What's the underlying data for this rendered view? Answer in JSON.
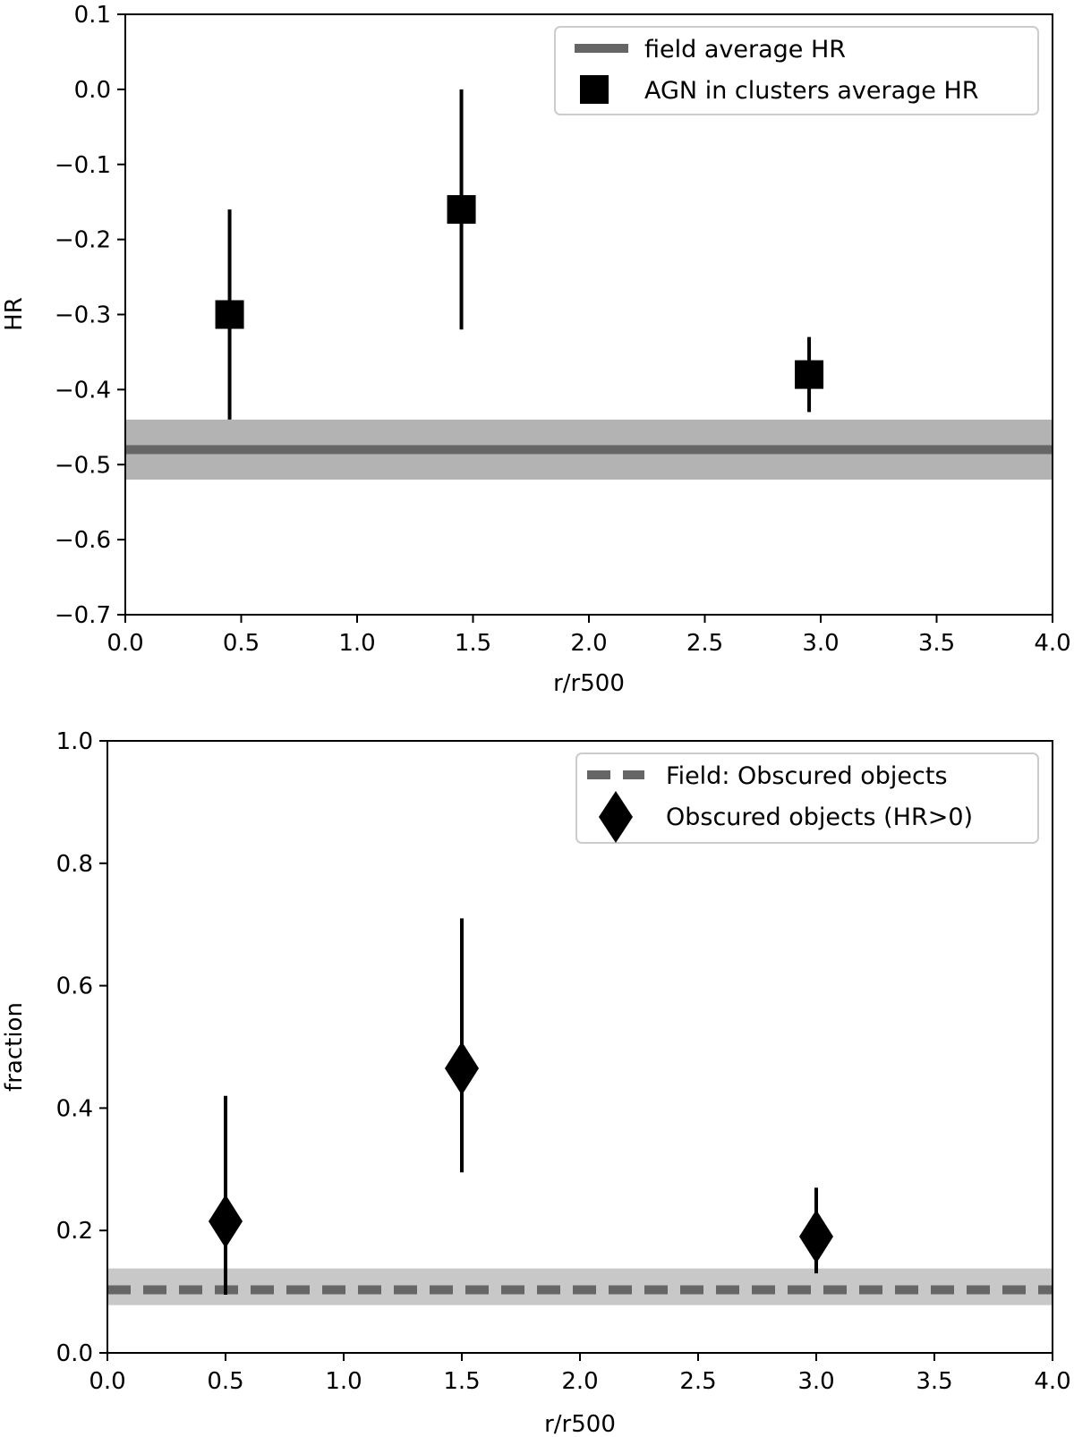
{
  "chart_data": [
    {
      "type": "scatter",
      "xlabel": "r/r500",
      "ylabel": "HR",
      "xlim": [
        0.0,
        4.0
      ],
      "ylim": [
        -0.7,
        0.1
      ],
      "xticks": [
        "0.0",
        "0.5",
        "1.0",
        "1.5",
        "2.0",
        "2.5",
        "3.0",
        "3.5",
        "4.0"
      ],
      "yticks": [
        "0.1",
        "0.0",
        "−0.1",
        "−0.2",
        "−0.3",
        "−0.4",
        "−0.5",
        "−0.6",
        "−0.7"
      ],
      "reference": {
        "name": "field average HR",
        "value": -0.48,
        "band": [
          -0.52,
          -0.44
        ],
        "style": "solid",
        "color": "#666666",
        "band_color": "#b3b3b3"
      },
      "series": [
        {
          "name": "AGN in clusters average HR",
          "marker": "square",
          "color": "#000000",
          "points": [
            {
              "x": 0.45,
              "y": -0.3,
              "ylow": -0.44,
              "yhigh": -0.16
            },
            {
              "x": 1.45,
              "y": -0.16,
              "ylow": -0.32,
              "yhigh": 0.0
            },
            {
              "x": 2.95,
              "y": -0.38,
              "ylow": -0.43,
              "yhigh": -0.33
            }
          ]
        }
      ],
      "legend": {
        "position": "top-right",
        "entries": [
          "field average HR",
          "AGN in clusters average HR"
        ]
      }
    },
    {
      "type": "scatter",
      "xlabel": "r/r500",
      "ylabel": "fraction",
      "xlim": [
        0.0,
        4.0
      ],
      "ylim": [
        0.0,
        1.0
      ],
      "xticks": [
        "0.0",
        "0.5",
        "1.0",
        "1.5",
        "2.0",
        "2.5",
        "3.0",
        "3.5",
        "4.0"
      ],
      "yticks": [
        "1.0",
        "0.8",
        "0.6",
        "0.4",
        "0.2",
        "0.0"
      ],
      "reference": {
        "name": "Field: Obscured objects",
        "value": 0.103,
        "band": [
          0.078,
          0.138
        ],
        "style": "dashed",
        "color": "#666666",
        "band_color": "#c8c8c8"
      },
      "series": [
        {
          "name": "Obscured objects (HR>0)",
          "marker": "diamond",
          "color": "#000000",
          "points": [
            {
              "x": 0.5,
              "y": 0.215,
              "ylow": 0.095,
              "yhigh": 0.42
            },
            {
              "x": 1.5,
              "y": 0.465,
              "ylow": 0.295,
              "yhigh": 0.71
            },
            {
              "x": 3.0,
              "y": 0.19,
              "ylow": 0.13,
              "yhigh": 0.27
            }
          ]
        }
      ],
      "legend": {
        "position": "top-right",
        "entries": [
          "Field: Obscured objects",
          "Obscured objects (HR>0)"
        ]
      }
    }
  ]
}
